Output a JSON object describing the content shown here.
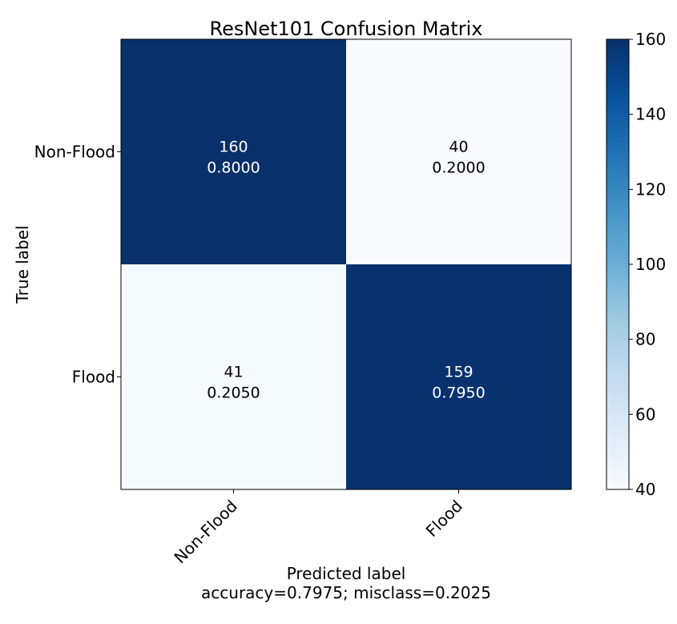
{
  "chart_data": {
    "type": "heatmap",
    "title": "ResNet101 Confusion Matrix",
    "xlabel": "Predicted label",
    "xlabel_sub": "accuracy=0.7975; misclass=0.2025",
    "ylabel": "True label",
    "x_categories": [
      "Non-Flood",
      "Flood"
    ],
    "y_categories": [
      "Non-Flood",
      "Flood"
    ],
    "cells": [
      {
        "row": 0,
        "col": 0,
        "count": "160",
        "fraction": "0.8000"
      },
      {
        "row": 0,
        "col": 1,
        "count": "40",
        "fraction": "0.2000"
      },
      {
        "row": 1,
        "col": 0,
        "count": "41",
        "fraction": "0.2050"
      },
      {
        "row": 1,
        "col": 1,
        "count": "159",
        "fraction": "0.7950"
      }
    ],
    "colorbar": {
      "min": 40,
      "max": 160,
      "ticks": [
        "40",
        "60",
        "80",
        "100",
        "120",
        "140",
        "160"
      ],
      "colormap": "Blues"
    },
    "colors": {
      "low": "#f7fbff",
      "high": "#08306b",
      "text_dark": "#000000",
      "text_light": "#ffffff"
    }
  }
}
